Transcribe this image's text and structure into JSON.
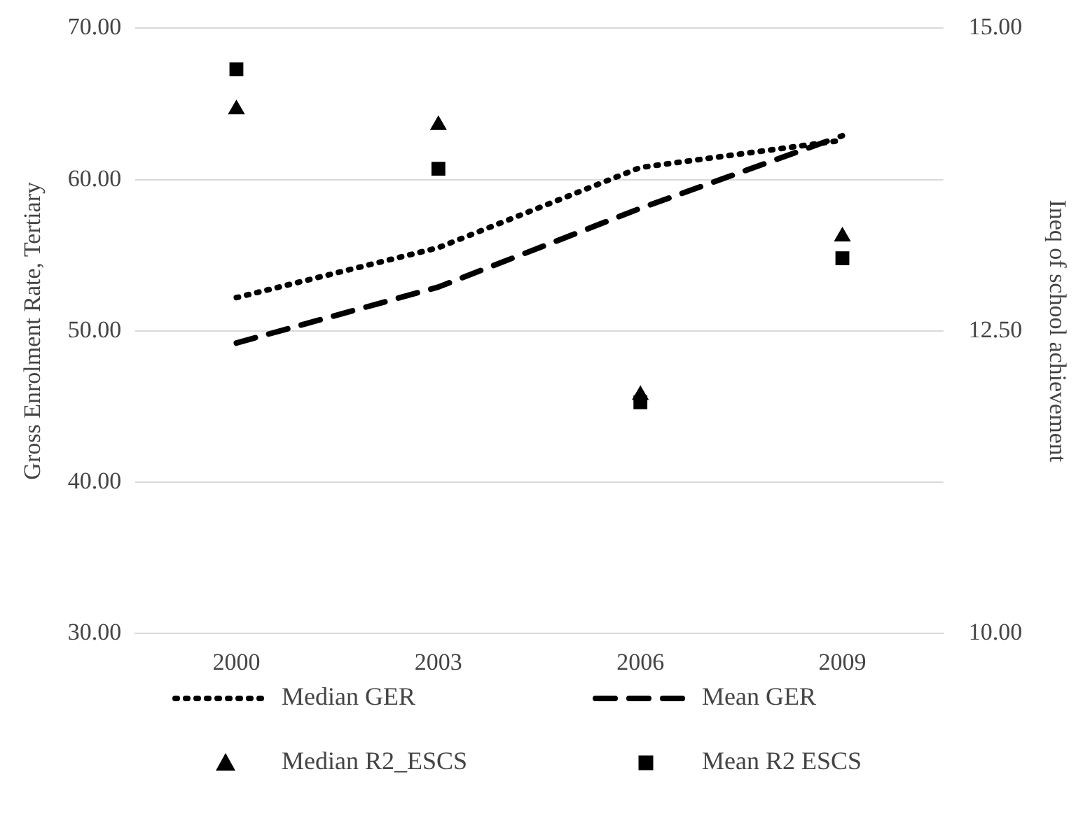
{
  "chart_data": {
    "type": "line",
    "ylabel": "Gross Enrolment Rate, Tertiary",
    "y2label": "Ineq of school achievement",
    "categories": [
      "2000",
      "2003",
      "2006",
      "2009"
    ],
    "series": [
      {
        "name": "Median GER",
        "color": "#000000",
        "line_style": "dotted",
        "marker": "none",
        "values": [
          52.2,
          55.5,
          60.8,
          62.6
        ]
      },
      {
        "name": "Mean GER",
        "color": "#000000",
        "line_style": "dashed",
        "marker": "none",
        "values": [
          49.2,
          52.9,
          58.1,
          62.9
        ]
      },
      {
        "name": "Median R2_ESCS",
        "type": "scatter",
        "color": "#000000",
        "marker": "triangle",
        "axis": "y2",
        "values": [
          14.33,
          14.2,
          11.97,
          13.28
        ]
      },
      {
        "name": "Mean R2 ESCS",
        "type": "scatter",
        "color": "#000000",
        "marker": "square",
        "axis": "y2",
        "values": [
          14.66,
          13.84,
          11.91,
          13.1
        ]
      }
    ],
    "ylim": [
      30,
      70
    ],
    "yticks": [
      {
        "value": 30,
        "label": "30.00"
      },
      {
        "value": 40,
        "label": "40.00"
      },
      {
        "value": 50,
        "label": "50.00"
      },
      {
        "value": 60,
        "label": "60.00"
      },
      {
        "value": 70,
        "label": "70.00"
      }
    ],
    "y2lim": [
      10,
      15
    ],
    "y2ticks": [
      {
        "value": 10,
        "label": "10.00"
      },
      {
        "value": 12.5,
        "label": "12.50"
      },
      {
        "value": 15,
        "label": "15.00"
      }
    ],
    "grid": "y",
    "legend": "bottom"
  }
}
